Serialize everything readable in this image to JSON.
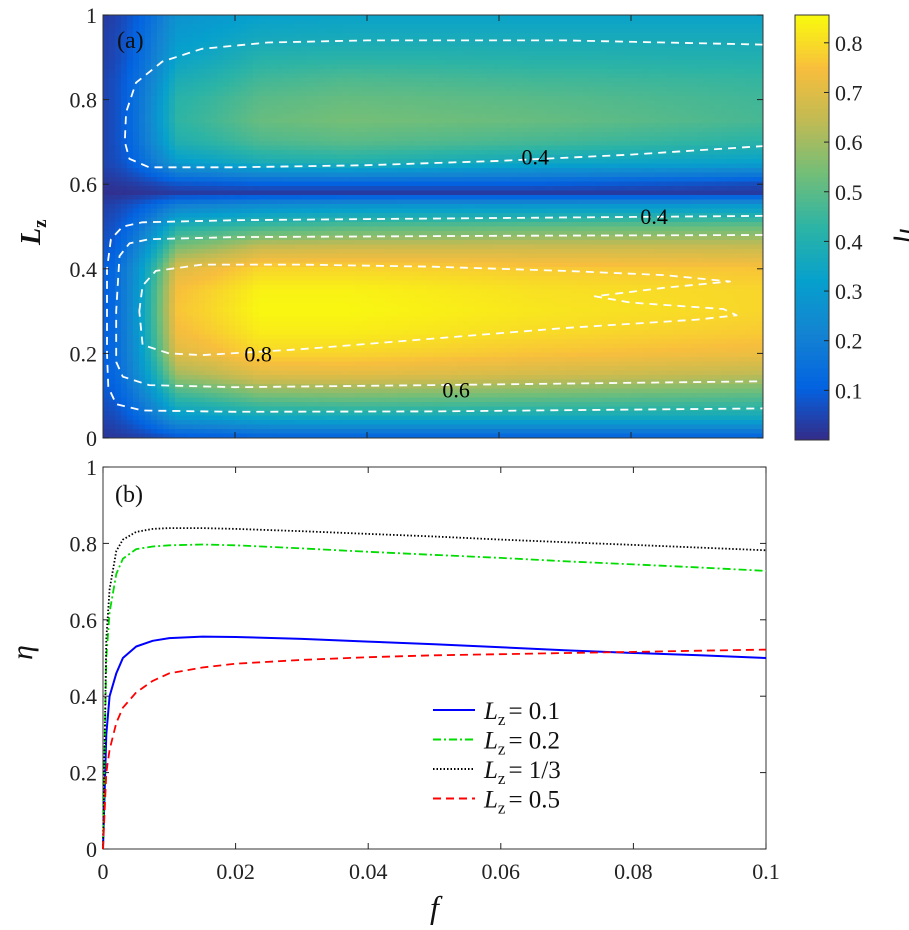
{
  "chart_data": [
    {
      "type": "heatmap",
      "panel_label": "(a)",
      "xlabel": "f",
      "ylabel": "L",
      "ylabel_sub": "z",
      "colorbar_label": "η",
      "xlim": [
        0,
        0.1
      ],
      "ylim": [
        0,
        1
      ],
      "clim": [
        0,
        0.856
      ],
      "yticks": [
        "0",
        "0.2",
        "0.4",
        "0.6",
        "0.8",
        "1"
      ],
      "colorbar_ticks": [
        "0.1",
        "0.2",
        "0.3",
        "0.4",
        "0.5",
        "0.6",
        "0.7",
        "0.8"
      ],
      "colormap": "parula",
      "grid_f": [
        0,
        0.003,
        0.01,
        0.02,
        0.05,
        0.1
      ],
      "grid_L": [
        0,
        0.05,
        0.1,
        0.15,
        0.2,
        0.25,
        0.3,
        0.35,
        0.4,
        0.45,
        0.5,
        0.55,
        0.58,
        0.6,
        0.65,
        0.7,
        0.75,
        0.8,
        0.85,
        0.9,
        0.95,
        1
      ],
      "values": [
        [
          0.02,
          0.08,
          0.1,
          0.1,
          0.1,
          0.1
        ],
        [
          0.05,
          0.3,
          0.36,
          0.37,
          0.37,
          0.37
        ],
        [
          0.08,
          0.45,
          0.54,
          0.55,
          0.53,
          0.5
        ],
        [
          0.1,
          0.6,
          0.7,
          0.71,
          0.68,
          0.64
        ],
        [
          0.1,
          0.7,
          0.79,
          0.79,
          0.76,
          0.73
        ],
        [
          0.1,
          0.74,
          0.83,
          0.83,
          0.8,
          0.77
        ],
        [
          0.1,
          0.76,
          0.85,
          0.85,
          0.82,
          0.79
        ],
        [
          0.1,
          0.75,
          0.84,
          0.84,
          0.81,
          0.79
        ],
        [
          0.1,
          0.7,
          0.79,
          0.79,
          0.77,
          0.76
        ],
        [
          0.08,
          0.55,
          0.66,
          0.67,
          0.67,
          0.66
        ],
        [
          0.06,
          0.4,
          0.46,
          0.49,
          0.51,
          0.52
        ],
        [
          0.04,
          0.2,
          0.25,
          0.27,
          0.28,
          0.29
        ],
        [
          0.01,
          0.03,
          0.03,
          0.03,
          0.03,
          0.03
        ],
        [
          0.02,
          0.08,
          0.1,
          0.1,
          0.1,
          0.06
        ],
        [
          0.05,
          0.3,
          0.38,
          0.4,
          0.35,
          0.32
        ],
        [
          0.05,
          0.4,
          0.48,
          0.5,
          0.47,
          0.42
        ],
        [
          0.05,
          0.43,
          0.52,
          0.54,
          0.52,
          0.47
        ],
        [
          0.05,
          0.42,
          0.5,
          0.52,
          0.5,
          0.46
        ],
        [
          0.05,
          0.38,
          0.46,
          0.48,
          0.46,
          0.44
        ],
        [
          0.04,
          0.33,
          0.41,
          0.42,
          0.41,
          0.4
        ],
        [
          0.04,
          0.3,
          0.36,
          0.37,
          0.37,
          0.37
        ],
        [
          0.03,
          0.27,
          0.32,
          0.33,
          0.33,
          0.33
        ]
      ],
      "contours": [
        {
          "level": 0.4,
          "points": [
            [
              0.1,
              0.93
            ],
            [
              0.07,
              0.94
            ],
            [
              0.04,
              0.94
            ],
            [
              0.025,
              0.935
            ],
            [
              0.015,
              0.92
            ],
            [
              0.009,
              0.89
            ],
            [
              0.005,
              0.84
            ],
            [
              0.0035,
              0.77
            ],
            [
              0.0033,
              0.7
            ],
            [
              0.004,
              0.66
            ],
            [
              0.007,
              0.64
            ],
            [
              0.02,
              0.64
            ],
            [
              0.04,
              0.645
            ],
            [
              0.06,
              0.655
            ],
            [
              0.08,
              0.67
            ],
            [
              0.1,
              0.69
            ]
          ]
        },
        {
          "level": 0.4,
          "points": [
            [
              0.1,
              0.525
            ],
            [
              0.06,
              0.52
            ],
            [
              0.02,
              0.515
            ],
            [
              0.006,
              0.51
            ],
            [
              0.003,
              0.5
            ],
            [
              0.0012,
              0.47
            ],
            [
              0.0006,
              0.4
            ],
            [
              0.0006,
              0.2
            ],
            [
              0.0008,
              0.12
            ],
            [
              0.002,
              0.08
            ],
            [
              0.006,
              0.065
            ],
            [
              0.02,
              0.062
            ],
            [
              0.05,
              0.063
            ],
            [
              0.1,
              0.07
            ]
          ]
        },
        {
          "level": 0.6,
          "points": [
            [
              0.1,
              0.48
            ],
            [
              0.06,
              0.478
            ],
            [
              0.02,
              0.475
            ],
            [
              0.007,
              0.47
            ],
            [
              0.004,
              0.46
            ],
            [
              0.0025,
              0.43
            ],
            [
              0.002,
              0.3
            ],
            [
              0.002,
              0.18
            ],
            [
              0.003,
              0.145
            ],
            [
              0.007,
              0.125
            ],
            [
              0.02,
              0.12
            ],
            [
              0.05,
              0.125
            ],
            [
              0.1,
              0.134
            ]
          ]
        },
        {
          "level": 0.8,
          "points": [
            [
              0.0055,
              0.3
            ],
            [
              0.006,
              0.36
            ],
            [
              0.008,
              0.395
            ],
            [
              0.015,
              0.41
            ],
            [
              0.03,
              0.41
            ],
            [
              0.05,
              0.405
            ],
            [
              0.07,
              0.395
            ],
            [
              0.085,
              0.385
            ],
            [
              0.095,
              0.37
            ],
            [
              0.085,
              0.355
            ],
            [
              0.0745,
              0.335
            ],
            [
              0.08,
              0.32
            ],
            [
              0.094,
              0.305
            ],
            [
              0.096,
              0.29
            ],
            [
              0.09,
              0.28
            ],
            [
              0.07,
              0.26
            ],
            [
              0.05,
              0.235
            ],
            [
              0.03,
              0.21
            ],
            [
              0.015,
              0.196
            ],
            [
              0.01,
              0.2
            ],
            [
              0.006,
              0.22
            ],
            [
              0.0055,
              0.3
            ]
          ]
        }
      ],
      "contour_labels": [
        {
          "text": "0.4",
          "f": 0.0655,
          "L": 0.665
        },
        {
          "text": "0.4",
          "f": 0.0835,
          "L": 0.525
        },
        {
          "text": "0.8",
          "f": 0.0235,
          "L": 0.2
        },
        {
          "text": "0.6",
          "f": 0.0535,
          "L": 0.115
        }
      ]
    },
    {
      "type": "line",
      "panel_label": "(b)",
      "xlabel": "f",
      "ylabel": "η",
      "xlim": [
        0,
        0.1
      ],
      "ylim": [
        0,
        1
      ],
      "xticks": [
        "0",
        "0.02",
        "0.04",
        "0.06",
        "0.08",
        "0.1"
      ],
      "yticks": [
        "0",
        "0.2",
        "0.4",
        "0.6",
        "0.8",
        "1"
      ],
      "legend_position": "lower-center",
      "x": [
        0,
        0.0005,
        0.001,
        0.002,
        0.003,
        0.005,
        0.0075,
        0.01,
        0.015,
        0.02,
        0.03,
        0.04,
        0.05,
        0.06,
        0.07,
        0.08,
        0.09,
        0.1
      ],
      "series": [
        {
          "name": "L",
          "sub": "z",
          "eq": "= 0.1",
          "color": "#0000ff",
          "style": "solid",
          "values": [
            0,
            0.3,
            0.4,
            0.46,
            0.5,
            0.53,
            0.545,
            0.552,
            0.556,
            0.555,
            0.55,
            0.543,
            0.536,
            0.528,
            0.52,
            0.513,
            0.507,
            0.5
          ]
        },
        {
          "name": "L",
          "sub": "z",
          "eq": "= 0.2",
          "color": "#00dd00",
          "style": "dashdot",
          "values": [
            0,
            0.5,
            0.62,
            0.72,
            0.76,
            0.785,
            0.792,
            0.795,
            0.797,
            0.795,
            0.787,
            0.778,
            0.77,
            0.762,
            0.753,
            0.745,
            0.737,
            0.728
          ]
        },
        {
          "name": "L",
          "sub": "z",
          "eq": "= 1/3",
          "color": "#000000",
          "style": "dotted",
          "values": [
            0,
            0.55,
            0.68,
            0.78,
            0.81,
            0.83,
            0.838,
            0.84,
            0.84,
            0.838,
            0.832,
            0.825,
            0.818,
            0.81,
            0.803,
            0.796,
            0.789,
            0.782
          ]
        },
        {
          "name": "L",
          "sub": "z",
          "eq": "= 0.5",
          "color": "#ff0000",
          "style": "dashed",
          "values": [
            0,
            0.2,
            0.26,
            0.33,
            0.37,
            0.41,
            0.44,
            0.46,
            0.475,
            0.485,
            0.495,
            0.502,
            0.507,
            0.51,
            0.513,
            0.516,
            0.519,
            0.522
          ]
        }
      ]
    }
  ]
}
